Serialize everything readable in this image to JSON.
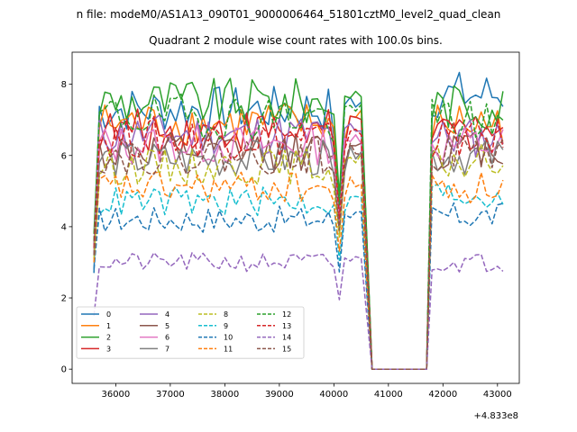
{
  "figure": {
    "suptitle": "n file: modeM0/AS1A13_090T01_9000006464_51801cztM0_level2_quad_clean",
    "offset_label": "+4.833e8"
  },
  "chart_data": {
    "type": "line",
    "title": "Quadrant 2 module wise count rates with 100.0s bins.",
    "xlabel": "",
    "ylabel": "",
    "xlim": [
      35200,
      43400
    ],
    "ylim": [
      -0.4,
      8.9
    ],
    "x_ticks": [
      36000,
      37000,
      38000,
      39000,
      40000,
      41000,
      42000,
      43000
    ],
    "x_tick_labels": [
      "36000",
      "37000",
      "38000",
      "39000",
      "40000",
      "41000",
      "42000",
      "43000"
    ],
    "y_ticks": [
      0,
      2,
      4,
      6,
      8
    ],
    "y_tick_labels": [
      "0",
      "2",
      "4",
      "6",
      "8"
    ],
    "grid": false,
    "legend_position": "lower-left",
    "legend_columns": 4,
    "x_segments": [
      {
        "start": 35600,
        "end": 40500,
        "step": 100
      },
      {
        "start": 40500,
        "end": 40700,
        "step": 200
      },
      {
        "start": 40700,
        "end": 41700,
        "step": 100
      },
      {
        "start": 41700,
        "end": 43100,
        "step": 100
      }
    ],
    "series": [
      {
        "name": "0",
        "style": "solid",
        "color": "#1f77b4",
        "seg_levels": [
          7.3,
          0,
          0,
          7.7
        ],
        "first": 2.7
      },
      {
        "name": "1",
        "style": "solid",
        "color": "#ff7f0e",
        "seg_levels": [
          6.9,
          0,
          0,
          6.9
        ],
        "first": 3.5
      },
      {
        "name": "2",
        "style": "solid",
        "color": "#2ca02c",
        "seg_levels": [
          7.5,
          0,
          0,
          7.4
        ],
        "first": 3.8
      },
      {
        "name": "3",
        "style": "solid",
        "color": "#d62728",
        "seg_levels": [
          6.7,
          0,
          0,
          6.7
        ],
        "first": 3.5
      },
      {
        "name": "4",
        "style": "solid",
        "color": "#9467bd",
        "seg_levels": [
          6.6,
          0,
          0,
          6.5
        ],
        "first": 3.4
      },
      {
        "name": "5",
        "style": "solid",
        "color": "#8c564b",
        "seg_levels": [
          6.1,
          0,
          0,
          6.2
        ],
        "first": 3.2
      },
      {
        "name": "6",
        "style": "solid",
        "color": "#e377c2",
        "seg_levels": [
          6.3,
          0,
          0,
          6.3
        ],
        "first": 3.3
      },
      {
        "name": "7",
        "style": "solid",
        "color": "#7f7f7f",
        "seg_levels": [
          5.9,
          0,
          0,
          6.0
        ],
        "first": 3.2
      },
      {
        "name": "8",
        "style": "dashed",
        "color": "#bcbd22",
        "seg_levels": [
          5.7,
          0,
          0,
          5.8
        ],
        "first": 3.1
      },
      {
        "name": "9",
        "style": "dashed",
        "color": "#17becf",
        "seg_levels": [
          4.7,
          0,
          0,
          4.9
        ],
        "first": 3.0
      },
      {
        "name": "10",
        "style": "dashed",
        "color": "#1f77b4",
        "seg_levels": [
          4.2,
          0,
          0,
          4.3
        ],
        "first": 2.8
      },
      {
        "name": "11",
        "style": "dashed",
        "color": "#ff7f0e",
        "seg_levels": [
          5.1,
          0,
          0,
          5.1
        ],
        "first": 3.0
      },
      {
        "name": "12",
        "style": "dashed",
        "color": "#2ca02c",
        "seg_levels": [
          7.1,
          0,
          0,
          7.0
        ],
        "first": 3.6
      },
      {
        "name": "13",
        "style": "dashed",
        "color": "#d62728",
        "seg_levels": [
          6.5,
          0,
          0,
          6.5
        ],
        "first": 3.4
      },
      {
        "name": "14",
        "style": "dashed",
        "color": "#9467bd",
        "seg_levels": [
          3.0,
          0,
          0,
          3.0
        ],
        "first": 1.5
      },
      {
        "name": "15",
        "style": "dashed",
        "color": "#8c564b",
        "seg_levels": [
          6.0,
          0,
          0,
          6.1
        ],
        "first": 3.2
      }
    ]
  }
}
